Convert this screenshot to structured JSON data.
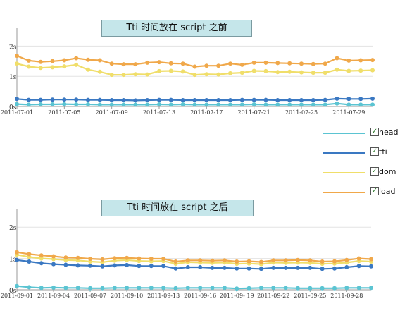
{
  "chart_data": [
    {
      "type": "line",
      "title": "Tti 时间放在 script 之前",
      "x": [
        "2011-07-01",
        "2011-07-02",
        "2011-07-03",
        "2011-07-04",
        "2011-07-05",
        "2011-07-06",
        "2011-07-07",
        "2011-07-08",
        "2011-07-09",
        "2011-07-10",
        "2011-07-11",
        "2011-07-12",
        "2011-07-13",
        "2011-07-14",
        "2011-07-15",
        "2011-07-16",
        "2011-07-17",
        "2011-07-18",
        "2011-07-19",
        "2011-07-20",
        "2011-07-21",
        "2011-07-22",
        "2011-07-23",
        "2011-07-24",
        "2011-07-25",
        "2011-07-26",
        "2011-07-27",
        "2011-07-28",
        "2011-07-29",
        "2011-07-30",
        "2011-07-31"
      ],
      "x_tick_labels": [
        "2011-07-01",
        "2011-07-05",
        "2011-07-09",
        "2011-07-13",
        "2011-07-17",
        "2011-07-21",
        "2011-07-25",
        "2011-07-29"
      ],
      "y_tick_labels": [
        "0s",
        "1s",
        "2s"
      ],
      "ylim": [
        0,
        2.5
      ],
      "grid": true,
      "series": [
        {
          "name": "head",
          "color": "#5bc4d2",
          "values": [
            0.08,
            0.06,
            0.07,
            0.07,
            0.08,
            0.07,
            0.07,
            0.06,
            0.06,
            0.06,
            0.06,
            0.06,
            0.07,
            0.06,
            0.07,
            0.06,
            0.06,
            0.06,
            0.06,
            0.06,
            0.07,
            0.06,
            0.06,
            0.06,
            0.06,
            0.06,
            0.06,
            0.1,
            0.06,
            0.06,
            0.06
          ]
        },
        {
          "name": "tti",
          "color": "#3a78c2",
          "values": [
            0.25,
            0.22,
            0.22,
            0.23,
            0.23,
            0.23,
            0.22,
            0.22,
            0.21,
            0.21,
            0.2,
            0.21,
            0.22,
            0.22,
            0.21,
            0.21,
            0.21,
            0.21,
            0.21,
            0.22,
            0.22,
            0.22,
            0.21,
            0.21,
            0.21,
            0.21,
            0.22,
            0.26,
            0.25,
            0.25,
            0.26
          ]
        },
        {
          "name": "dom",
          "color": "#f0de6a",
          "values": [
            1.42,
            1.32,
            1.28,
            1.3,
            1.33,
            1.38,
            1.22,
            1.15,
            1.05,
            1.05,
            1.07,
            1.06,
            1.17,
            1.18,
            1.16,
            1.05,
            1.07,
            1.06,
            1.1,
            1.12,
            1.18,
            1.17,
            1.14,
            1.15,
            1.13,
            1.12,
            1.12,
            1.22,
            1.18,
            1.19,
            1.2
          ]
        },
        {
          "name": "load",
          "color": "#f0a84a",
          "values": [
            1.68,
            1.52,
            1.48,
            1.5,
            1.53,
            1.6,
            1.55,
            1.53,
            1.42,
            1.4,
            1.4,
            1.45,
            1.47,
            1.43,
            1.42,
            1.32,
            1.35,
            1.35,
            1.42,
            1.38,
            1.45,
            1.45,
            1.44,
            1.43,
            1.42,
            1.41,
            1.42,
            1.6,
            1.52,
            1.53,
            1.54
          ]
        }
      ]
    },
    {
      "type": "line",
      "title": "Tti 时间放在 script 之后",
      "x": [
        "2011-09-01",
        "2011-09-02",
        "2011-09-03",
        "2011-09-04",
        "2011-09-05",
        "2011-09-06",
        "2011-09-07",
        "2011-09-08",
        "2011-09-09",
        "2011-09-10",
        "2011-09-11",
        "2011-09-12",
        "2011-09-13",
        "2011-09-14",
        "2011-09-15",
        "2011-09-16",
        "2011-09-17",
        "2011-09-18",
        "2011-09-19",
        "2011-09-20",
        "2011-09-21",
        "2011-09-22",
        "2011-09-23",
        "2011-09-24",
        "2011-09-25",
        "2011-09-26",
        "2011-09-27",
        "2011-09-28",
        "2011-09-29",
        "2011-09-30"
      ],
      "x_tick_labels": [
        "2011-09-01",
        "2011-09-04",
        "2011-09-07",
        "2011-09-10",
        "2011-09-13",
        "2011-09-16",
        "2011-09- 19",
        "2011-09-22",
        "2011-09-25",
        "2011-09-28"
      ],
      "y_tick_labels": [
        "0s",
        "1s",
        "2s"
      ],
      "ylim": [
        0,
        2.5
      ],
      "grid": true,
      "series": [
        {
          "name": "head",
          "color": "#5bc4d2",
          "values": [
            0.12,
            0.08,
            0.06,
            0.07,
            0.06,
            0.06,
            0.05,
            0.05,
            0.06,
            0.06,
            0.06,
            0.06,
            0.06,
            0.05,
            0.06,
            0.06,
            0.06,
            0.06,
            0.04,
            0.05,
            0.06,
            0.06,
            0.06,
            0.05,
            0.05,
            0.05,
            0.05,
            0.06,
            0.06,
            0.06
          ]
        },
        {
          "name": "tti",
          "color": "#3a78c2",
          "values": [
            0.95,
            0.9,
            0.85,
            0.82,
            0.8,
            0.78,
            0.77,
            0.75,
            0.78,
            0.79,
            0.76,
            0.76,
            0.76,
            0.68,
            0.72,
            0.72,
            0.7,
            0.7,
            0.68,
            0.68,
            0.67,
            0.7,
            0.7,
            0.7,
            0.7,
            0.67,
            0.68,
            0.72,
            0.76,
            0.75
          ]
        },
        {
          "name": "dom",
          "color": "#f0de6a",
          "values": [
            1.12,
            1.05,
            1.0,
            0.98,
            0.95,
            0.94,
            0.9,
            0.88,
            0.93,
            0.95,
            0.92,
            0.91,
            0.92,
            0.83,
            0.88,
            0.87,
            0.86,
            0.87,
            0.83,
            0.84,
            0.82,
            0.87,
            0.86,
            0.87,
            0.86,
            0.83,
            0.84,
            0.87,
            0.92,
            0.9
          ]
        },
        {
          "name": "load",
          "color": "#f0a84a",
          "values": [
            1.2,
            1.14,
            1.1,
            1.07,
            1.03,
            1.02,
            0.99,
            0.97,
            1.01,
            1.02,
            1.0,
            0.99,
            0.99,
            0.9,
            0.94,
            0.94,
            0.93,
            0.94,
            0.9,
            0.91,
            0.89,
            0.94,
            0.94,
            0.95,
            0.94,
            0.9,
            0.91,
            0.95,
            1.0,
            0.98
          ]
        }
      ]
    }
  ],
  "legend": [
    {
      "label": "head",
      "color": "#5bc4d2",
      "checked_mark": "✓",
      "checked": true
    },
    {
      "label": "tti",
      "color": "#3a78c2",
      "checked_mark": "✓",
      "checked": true
    },
    {
      "label": "dom",
      "color": "#f0de6a",
      "checked_mark": "✓",
      "checked": true
    },
    {
      "label": "load",
      "color": "#f0a84a",
      "checked_mark": "✓",
      "checked": true
    }
  ]
}
